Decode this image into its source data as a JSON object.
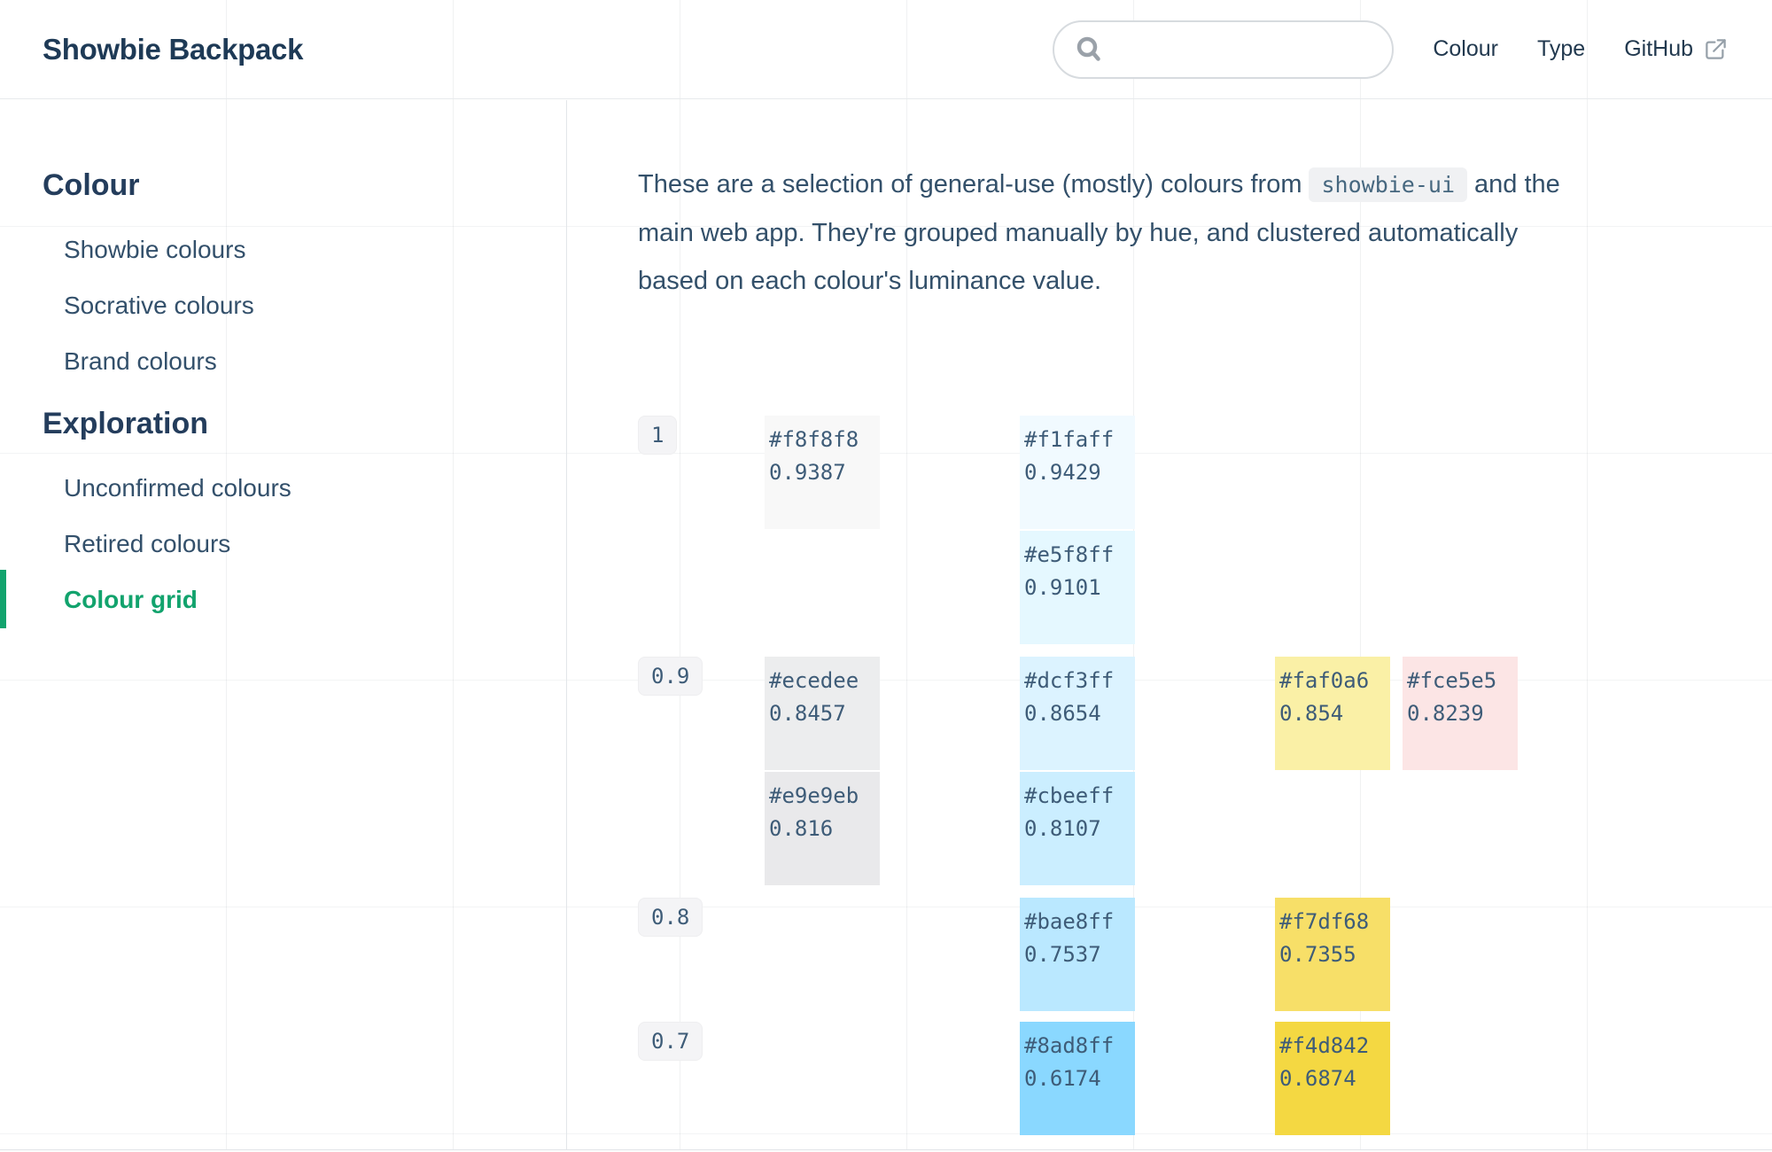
{
  "colors": {
    "accent_green": "#12a36d",
    "header_text": "#1e3a56",
    "body_text": "#33506a",
    "swatch_text": "#3e5c78",
    "border": "#e5e8eb"
  },
  "header": {
    "title": "Showbie Backpack",
    "search": {
      "placeholder": "",
      "value": ""
    },
    "nav": [
      {
        "label": "Colour"
      },
      {
        "label": "Type"
      },
      {
        "label": "GitHub",
        "icon": "external-link-icon"
      }
    ]
  },
  "sidebar": {
    "sections": [
      {
        "heading": "Colour",
        "items": [
          {
            "label": "Showbie colours"
          },
          {
            "label": "Socrative colours"
          },
          {
            "label": "Brand colours"
          }
        ]
      },
      {
        "heading": "Exploration",
        "items": [
          {
            "label": "Unconfirmed colours"
          },
          {
            "label": "Retired colours"
          },
          {
            "label": "Colour grid",
            "active": true
          }
        ]
      }
    ]
  },
  "intro": {
    "line1_before": "These are a selection of general-use (mostly) colours from",
    "code": "showbie-ui",
    "line1_after": "and the",
    "line2": "main web app. They're grouped manually by hue, and clustered automatically",
    "line3": "based on each colour's luminance value."
  },
  "colour_grid": {
    "rows": [
      {
        "label": "1",
        "clusters": [
          {
            "col": 0,
            "cells": [
              {
                "hex": "#f8f8f8",
                "luminance": "0.9387"
              }
            ]
          },
          {
            "col": 2,
            "cells": [
              {
                "hex": "#f1faff",
                "luminance": "0.9429"
              },
              {
                "hex": "#e5f8ff",
                "luminance": "0.9101"
              }
            ]
          }
        ]
      },
      {
        "label": "0.9",
        "clusters": [
          {
            "col": 0,
            "cells": [
              {
                "hex": "#ecedee",
                "luminance": "0.8457"
              },
              {
                "hex": "#e9e9eb",
                "luminance": "0.816"
              }
            ]
          },
          {
            "col": 2,
            "cells": [
              {
                "hex": "#dcf3ff",
                "luminance": "0.8654"
              },
              {
                "hex": "#cbeeff",
                "luminance": "0.8107"
              }
            ]
          },
          {
            "col": 4,
            "cells": [
              {
                "hex": "#faf0a6",
                "luminance": "0.854"
              }
            ]
          },
          {
            "col": 5,
            "cells": [
              {
                "hex": "#fce5e5",
                "luminance": "0.8239"
              }
            ]
          }
        ]
      },
      {
        "label": "0.8",
        "clusters": [
          {
            "col": 2,
            "cells": [
              {
                "hex": "#bae8ff",
                "luminance": "0.7537"
              }
            ]
          },
          {
            "col": 4,
            "cells": [
              {
                "hex": "#f7df68",
                "luminance": "0.7355"
              }
            ]
          }
        ]
      },
      {
        "label": "0.7",
        "clusters": [
          {
            "col": 2,
            "cells": [
              {
                "hex": "#8ad8ff",
                "luminance": "0.6174"
              }
            ]
          },
          {
            "col": 4,
            "cells": [
              {
                "hex": "#f4d842",
                "luminance": "0.6874"
              }
            ]
          }
        ]
      }
    ]
  }
}
